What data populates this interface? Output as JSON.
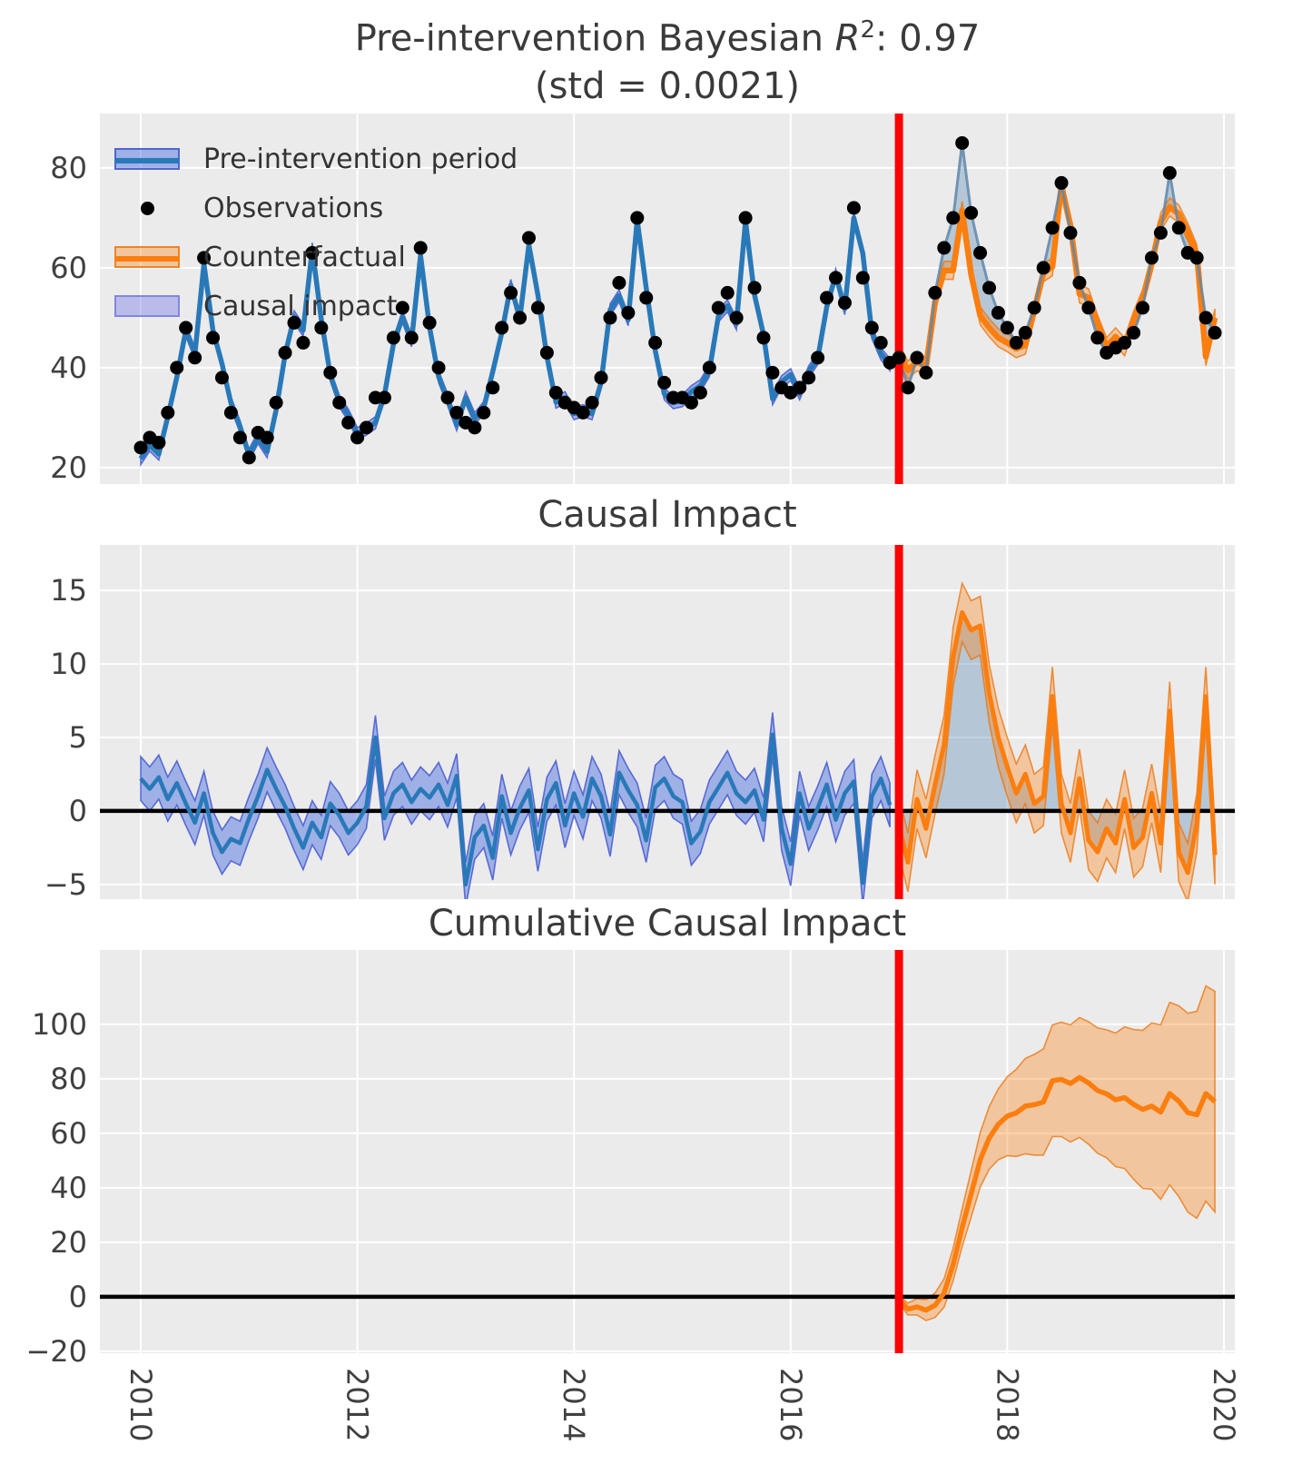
{
  "figure": {
    "title": {
      "line1_prefix": "Pre-intervention Bayesian ",
      "r_symbol": "R",
      "r_exponent": "2",
      "line1_suffix": ": 0.97",
      "line2": "(std = 0.0021)"
    },
    "legend": {
      "items": [
        {
          "label": "Pre-intervention period",
          "swatch": "band-line",
          "line_color": "#2979b8",
          "band_color": "#4169e1"
        },
        {
          "label": "Observations",
          "swatch": "dot",
          "color": "#000000"
        },
        {
          "label": "Counterfactual",
          "swatch": "band-line",
          "line_color": "#fb7e0e",
          "band_color": "#fdae6b"
        },
        {
          "label": "Causal impact",
          "swatch": "patch",
          "color": "#7d83e5"
        }
      ]
    }
  },
  "chart_data": {
    "type": "line",
    "x": {
      "start_year": 2010,
      "frequency": "monthly",
      "n_points": 120,
      "intervention_year": 2017,
      "ticks": [
        2010,
        2012,
        2014,
        2016,
        2018,
        2020
      ],
      "tick_labels": [
        "2010",
        "2012",
        "2014",
        "2016",
        "2018",
        "2020"
      ]
    },
    "style": {
      "background": "#ebebeb",
      "grid": "#ffffff",
      "observation_color": "#000000",
      "pre_line": "#2979b8",
      "pre_band_fill": "rgba(65,105,225,0.45)",
      "pre_band_edge": "rgba(61,81,205,0.8)",
      "cf_line": "#fb7e0e",
      "cf_band_fill": "rgba(251,126,14,0.35)",
      "cf_band_edge": "rgba(235,115,10,0.75)",
      "impact_fill": "rgba(108,149,187,0.42)",
      "post_obs_line": "rgba(95,135,170,0.85)",
      "intervention_line": "#ff0000",
      "zero_line": "#000000",
      "tick_color": "#404040",
      "title_color": "#3a3a3a"
    },
    "panels": [
      {
        "name": "observations-vs-fit",
        "title": "",
        "yticks": [
          20,
          40,
          60,
          80
        ],
        "ylim": [
          16.7,
          90.9
        ],
        "zero_line": false,
        "series": {
          "observed": [
            24,
            26,
            25,
            31,
            40,
            48,
            42,
            62,
            46,
            38,
            31,
            26,
            22,
            27,
            26,
            33,
            43,
            49,
            45,
            63,
            48,
            39,
            33,
            29,
            26,
            28,
            34,
            34,
            46,
            52,
            46,
            64,
            49,
            40,
            34,
            31,
            29,
            28,
            31,
            36,
            48,
            55,
            50,
            66,
            52,
            43,
            35,
            33,
            32,
            31,
            33,
            38,
            50,
            57,
            51,
            70,
            54,
            45,
            37,
            34,
            34,
            33,
            35,
            40,
            52,
            55,
            50,
            70,
            56,
            46,
            39,
            36,
            35,
            36,
            38,
            42,
            54,
            58,
            53,
            72,
            58,
            48,
            45,
            41,
            42,
            36,
            42,
            39,
            55,
            64,
            70,
            85,
            71,
            63,
            56,
            51,
            48,
            45,
            47,
            52,
            60,
            68,
            77,
            67,
            57,
            52,
            46,
            43,
            44,
            45,
            47,
            52,
            62,
            67,
            79,
            68,
            63,
            62,
            50,
            47
          ],
          "fitted_pre": [
            21.8,
            24.5,
            22.7,
            30.2,
            38.1,
            47.5,
            42.8,
            60.8,
            47.5,
            40.8,
            32.9,
            28.2,
            22.5,
            26.0,
            23.2,
            31.5,
            42.7,
            50.2,
            47.5,
            63.8,
            49.8,
            38.5,
            33.3,
            30.5,
            26.8,
            27.7,
            29.0,
            34.5,
            44.8,
            50.2,
            45.4,
            62.5,
            48.1,
            38.2,
            33.6,
            28.6,
            34.0,
            29.8,
            32.0,
            39.2,
            47.0,
            56.5,
            49.8,
            64.6,
            54.6,
            42.2,
            33.1,
            34.0,
            30.8,
            31.4,
            30.8,
            37.0,
            51.6,
            54.4,
            49.6,
            69.6,
            56.0,
            43.4,
            34.8,
            33.0,
            33.4,
            35.2,
            36.4,
            39.4,
            50.4,
            52.4,
            48.8,
            69.4,
            54.6,
            46.6,
            33.8,
            37.2,
            38.6,
            34.8,
            39.2,
            41.8,
            52.2,
            58.6,
            51.8,
            70.0,
            62.9,
            47.0,
            42.8,
            40.6
          ],
          "counterfactual_post": [
            43.0,
            39.5,
            41.2,
            40.2,
            53.2,
            59.5,
            59.5,
            71.5,
            58.7,
            50.4,
            48.0,
            46.0,
            45.0,
            43.8,
            44.5,
            51.5,
            59.0,
            60.2,
            76.5,
            68.5,
            54.8,
            54.0,
            48.8,
            44.2,
            46.2,
            44.2,
            49.5,
            53.8,
            60.8,
            69.2,
            72.2,
            70.8,
            67.2,
            62.8,
            42.2,
            50.0
          ],
          "fit_band_halfwidth": 1.2,
          "cf_band_halfwidth": 1.8
        }
      },
      {
        "name": "causal-impact",
        "title": "Causal Impact",
        "yticks": [
          -5,
          0,
          5,
          10,
          15
        ],
        "ylim": [
          -6.0,
          18.1
        ],
        "zero_line": true,
        "series": {
          "point_effect": [
            2.2,
            1.5,
            2.3,
            0.8,
            1.9,
            0.5,
            -0.8,
            1.2,
            -1.5,
            -2.8,
            -1.9,
            -2.2,
            -0.5,
            1.0,
            2.8,
            1.5,
            0.3,
            -1.2,
            -2.5,
            -0.8,
            -1.8,
            0.5,
            -0.3,
            -1.5,
            -0.8,
            0.3,
            5.0,
            -0.5,
            1.2,
            1.8,
            0.6,
            1.5,
            0.9,
            1.8,
            0.4,
            2.4,
            -5.0,
            -1.8,
            -1.0,
            -3.2,
            1.0,
            -1.5,
            0.2,
            1.4,
            -2.6,
            0.8,
            1.9,
            -1.0,
            1.2,
            -0.4,
            2.2,
            1.0,
            -1.6,
            2.6,
            1.4,
            0.4,
            -2.0,
            1.6,
            2.2,
            1.0,
            0.6,
            -2.2,
            -1.4,
            0.6,
            1.6,
            2.6,
            1.2,
            0.6,
            1.4,
            -0.6,
            5.2,
            -1.2,
            -3.6,
            1.2,
            -1.2,
            0.2,
            1.8,
            -0.6,
            1.2,
            2.0,
            -4.9,
            1.0,
            2.2,
            0.4,
            -1.0,
            -3.5,
            0.8,
            -1.2,
            1.8,
            4.5,
            10.5,
            13.5,
            12.3,
            12.6,
            8.0,
            5.0,
            3.0,
            1.2,
            2.5,
            0.5,
            1.0,
            7.8,
            0.5,
            -1.5,
            2.2,
            -2.0,
            -2.8,
            -1.2,
            -2.2,
            0.8,
            -2.5,
            -1.8,
            1.2,
            -2.2,
            6.8,
            -2.8,
            -4.2,
            -0.8,
            7.8,
            -3.0
          ],
          "pre_band_halfwidth": 1.5,
          "post_band_halfwidth": 2.0
        }
      },
      {
        "name": "cumulative-causal-impact",
        "title": "Cumulative Causal Impact",
        "yticks": [
          -20,
          0,
          20,
          40,
          60,
          80,
          100
        ],
        "ylim": [
          -20.7,
          127.3
        ],
        "zero_line": true,
        "series": {
          "cumulative": [
            -1.0,
            -4.5,
            -3.7,
            -4.9,
            -3.1,
            1.4,
            11.9,
            25.4,
            37.7,
            50.3,
            58.3,
            63.3,
            66.3,
            67.5,
            70.0,
            70.5,
            71.5,
            79.3,
            79.8,
            78.3,
            80.5,
            78.5,
            75.7,
            74.5,
            72.3,
            73.1,
            70.6,
            68.8,
            70.0,
            67.8,
            74.6,
            71.8,
            67.6,
            66.8,
            74.6,
            71.6
          ],
          "lower": [
            -2.2,
            -6.7,
            -6.7,
            -8.7,
            -7.6,
            -3.8,
            5.9,
            18.4,
            29.2,
            40.3,
            46.8,
            50.3,
            51.8,
            51.5,
            52.5,
            52.0,
            52.0,
            58.8,
            58.8,
            56.8,
            58.5,
            56.0,
            52.7,
            51.0,
            47.8,
            47.1,
            43.1,
            39.8,
            39.5,
            35.8,
            41.1,
            36.8,
            31.1,
            28.8,
            35.1,
            31.1
          ],
          "upper": [
            0.2,
            -2.3,
            -0.7,
            -1.1,
            1.4,
            6.6,
            17.9,
            32.4,
            46.2,
            60.3,
            69.8,
            76.3,
            80.8,
            83.5,
            87.5,
            89.0,
            91.0,
            99.8,
            100.8,
            99.8,
            102.5,
            101.0,
            98.7,
            98.0,
            96.8,
            99.1,
            98.1,
            97.8,
            100.5,
            99.8,
            108.1,
            106.8,
            104.1,
            104.8,
            114.1,
            112.1
          ]
        }
      }
    ]
  }
}
